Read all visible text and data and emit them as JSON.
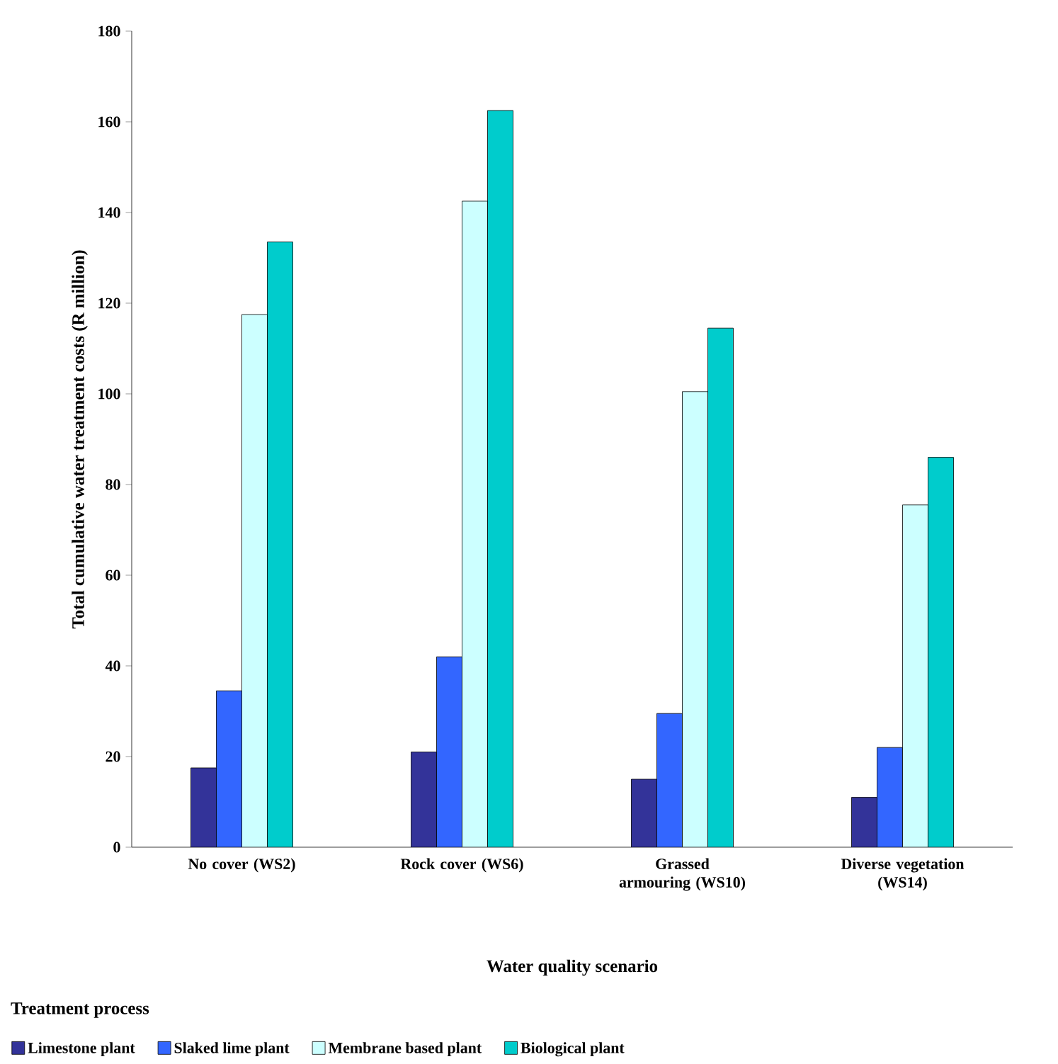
{
  "chart_data": {
    "type": "bar",
    "xlabel": "Water quality scenario",
    "ylabel": "Total cumulative water treatment costs (R million)",
    "categories": [
      "No cover (WS2)",
      "Rock cover (WS6)",
      "Grassed armouring (WS10)",
      "Diverse vegetation (WS14)"
    ],
    "series": [
      {
        "name": "Limestone plant",
        "color": "#333399",
        "values": [
          17.5,
          21,
          15,
          11
        ]
      },
      {
        "name": "Slaked lime plant",
        "color": "#3366ff",
        "values": [
          34.5,
          42,
          29.5,
          22
        ]
      },
      {
        "name": "Membrane based plant",
        "color": "#ccffff",
        "values": [
          117.5,
          142.5,
          100.5,
          75.5
        ]
      },
      {
        "name": "Biological plant",
        "color": "#00cccc",
        "values": [
          133.5,
          162.5,
          114.5,
          86
        ]
      }
    ],
    "ylim": [
      0,
      180
    ],
    "yticks": [
      0,
      20,
      40,
      60,
      80,
      100,
      120,
      140,
      160,
      180
    ],
    "legend": "bottom",
    "legend_title": "Treatment process",
    "grid": false
  }
}
